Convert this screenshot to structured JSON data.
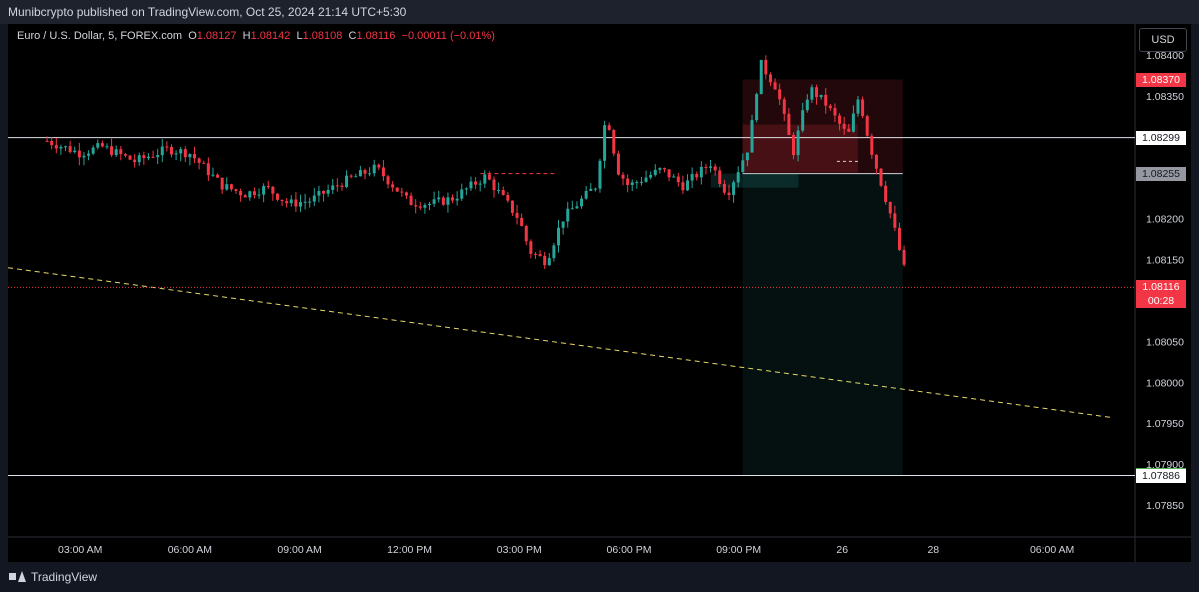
{
  "header": {
    "published_text": "Munibcrypto published on TradingView.com, Oct 25, 2024 21:14 UTC+5:30"
  },
  "legend": {
    "symbol": "Euro / U.S. Dollar, 5, FOREX.com",
    "o_label": "O",
    "o_value": "1.08127",
    "h_label": "H",
    "h_value": "1.08142",
    "l_label": "L",
    "l_value": "1.08108",
    "c_label": "C",
    "c_value": "1.08116",
    "change": "−0.00011 (−0.01%)"
  },
  "currency_button": "USD",
  "footer": {
    "brand": "TradingView"
  },
  "colors": {
    "up": "#26a69a",
    "down": "#f23645",
    "background": "#000000",
    "trendline": "#e8d96a"
  },
  "chart_data": {
    "type": "candlestick",
    "symbol": "Euro / U.S. Dollar, 5, FOREX.com",
    "ylim": [
      1.07825,
      1.0841
    ],
    "y_ticks": [
      "1.08400",
      "1.08350",
      "1.08200",
      "1.08150",
      "1.08050",
      "1.08000",
      "1.07950",
      "1.07900",
      "1.07850"
    ],
    "x_ticks": [
      "03:00 AM",
      "06:00 AM",
      "09:00 AM",
      "12:00 PM",
      "03:00 PM",
      "06:00 PM",
      "09:00 PM",
      "26",
      "28",
      "06:00 AM"
    ],
    "price_labels": [
      {
        "value": "1.08370",
        "style": "red"
      },
      {
        "value": "1.08299",
        "style": "white"
      },
      {
        "value": "1.08255",
        "style": "gray"
      },
      {
        "value": "1.08116",
        "style": "red",
        "sub": "00:28"
      },
      {
        "value": "1.07887",
        "style": "green"
      },
      {
        "value": "1.07886",
        "style": "white"
      }
    ],
    "horizontal_lines": [
      1.08299,
      1.07886
    ],
    "current_price": 1.08116,
    "short_position": {
      "entry": 1.08255,
      "stop": 1.0837,
      "target": 1.07887,
      "start_tick": 6.04,
      "end_tick": 7.5
    },
    "dashed_trendline": {
      "start": [
        0,
        1.0814
      ],
      "end": [
        9.4,
        1.07957
      ]
    },
    "path": [
      [
        -0.3,
        1.08295
      ],
      [
        0.0,
        1.0828
      ],
      [
        0.2,
        1.08288
      ],
      [
        0.5,
        1.0827
      ],
      [
        0.8,
        1.08285
      ],
      [
        1.0,
        1.0828
      ],
      [
        1.3,
        1.0824
      ],
      [
        1.5,
        1.0823
      ],
      [
        1.7,
        1.08238
      ],
      [
        1.9,
        1.08218
      ],
      [
        2.1,
        1.08222
      ],
      [
        2.4,
        1.08245
      ],
      [
        2.7,
        1.08262
      ],
      [
        3.0,
        1.0822
      ],
      [
        3.2,
        1.08218
      ],
      [
        3.4,
        1.08225
      ],
      [
        3.7,
        1.08252
      ],
      [
        4.0,
        1.082
      ],
      [
        4.1,
        1.0816
      ],
      [
        4.25,
        1.08148
      ],
      [
        4.4,
        1.082
      ],
      [
        4.7,
        1.0824
      ],
      [
        4.8,
        1.0833
      ],
      [
        4.9,
        1.0826
      ],
      [
        5.0,
        1.0824
      ],
      [
        5.3,
        1.0826
      ],
      [
        5.5,
        1.0824
      ],
      [
        5.75,
        1.08268
      ],
      [
        5.9,
        1.0823
      ],
      [
        6.1,
        1.0829
      ],
      [
        6.2,
        1.0839
      ],
      [
        6.35,
        1.0836
      ],
      [
        6.5,
        1.0828
      ],
      [
        6.65,
        1.0836
      ],
      [
        6.8,
        1.0834
      ],
      [
        7.0,
        1.083
      ],
      [
        7.1,
        1.0835
      ],
      [
        7.2,
        1.0829
      ],
      [
        7.4,
        1.082
      ],
      [
        7.55,
        1.08118
      ]
    ]
  }
}
